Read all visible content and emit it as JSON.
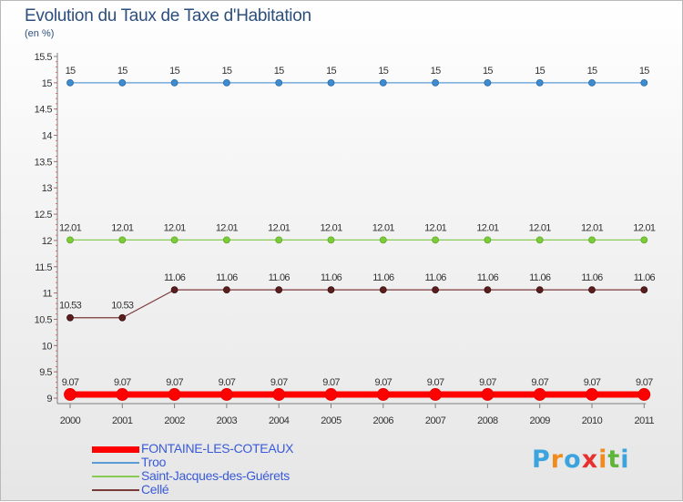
{
  "header": {
    "title": "Evolution du Taux de Taxe d'Habitation",
    "unit": "(en %)"
  },
  "logo": {
    "text": "Proxiti",
    "letter_colors": [
      "#3ba4dc",
      "#f08c1e",
      "#3ba4dc",
      "#e8302e",
      "#f08c1e",
      "#5fb43a",
      "#3ba4dc"
    ]
  },
  "chart_data": {
    "type": "line",
    "title": "Evolution du Taux de Taxe d'Habitation",
    "ylabel": "(en %)",
    "xlabel": "",
    "categories": [
      "2000",
      "2001",
      "2002",
      "2003",
      "2004",
      "2005",
      "2006",
      "2007",
      "2008",
      "2009",
      "2010",
      "2011"
    ],
    "ylim": [
      9,
      15.5
    ],
    "yticks": [
      "9",
      "9.5",
      "10",
      "10.5",
      "11",
      "11.5",
      "12",
      "12.5",
      "13",
      "13.5",
      "14",
      "14.5",
      "15",
      "15.5"
    ],
    "grid": false,
    "series": [
      {
        "name": "FONTAINE-LES-COTEAUX",
        "color": "#ff0000",
        "values": [
          9.07,
          9.07,
          9.07,
          9.07,
          9.07,
          9.07,
          9.07,
          9.07,
          9.07,
          9.07,
          9.07,
          9.07
        ],
        "labels": [
          "9.07",
          "9.07",
          "9.07",
          "9.07",
          "9.07",
          "9.07",
          "9.07",
          "9.07",
          "9.07",
          "9.07",
          "9.07",
          "9.07"
        ]
      },
      {
        "name": "Troo",
        "color": "#5b9bd5",
        "values": [
          15,
          15,
          15,
          15,
          15,
          15,
          15,
          15,
          15,
          15,
          15,
          15
        ],
        "labels": [
          "15",
          "15",
          "15",
          "15",
          "15",
          "15",
          "15",
          "15",
          "15",
          "15",
          "15",
          "15"
        ]
      },
      {
        "name": "Saint-Jacques-des-Guérets",
        "color": "#88cc55",
        "values": [
          12.01,
          12.01,
          12.01,
          12.01,
          12.01,
          12.01,
          12.01,
          12.01,
          12.01,
          12.01,
          12.01,
          12.01
        ],
        "labels": [
          "12.01",
          "12.01",
          "12.01",
          "12.01",
          "12.01",
          "12.01",
          "12.01",
          "12.01",
          "12.01",
          "12.01",
          "12.01",
          "12.01"
        ]
      },
      {
        "name": "Cellé",
        "color": "#7a3a3a",
        "values": [
          10.53,
          10.53,
          11.06,
          11.06,
          11.06,
          11.06,
          11.06,
          11.06,
          11.06,
          11.06,
          11.06,
          11.06
        ],
        "labels": [
          "10.53",
          "10.53",
          "11.06",
          "11.06",
          "11.06",
          "11.06",
          "11.06",
          "11.06",
          "11.06",
          "11.06",
          "11.06",
          "11.06"
        ]
      }
    ],
    "legend_position": "bottom-left"
  }
}
